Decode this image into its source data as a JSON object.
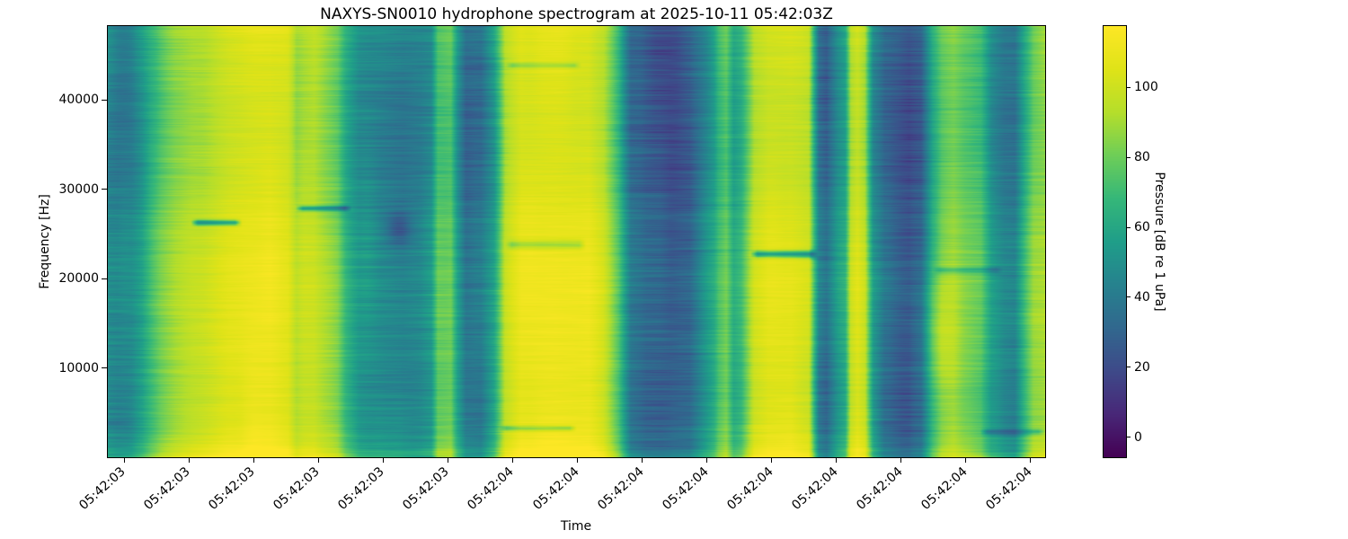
{
  "chart_data": {
    "type": "heatmap",
    "title": "NAXYS-SN0010 hydrophone spectrogram at 2025-10-11 05:42:03Z",
    "xlabel": "Time",
    "ylabel": "Frequency [Hz]",
    "colorbar_label": "Pressure [dB re 1 uPa]",
    "colormap": "viridis",
    "x_tick_labels": [
      "05:42:03",
      "05:42:03",
      "05:42:03",
      "05:42:03",
      "05:42:03",
      "05:42:03",
      "05:42:04",
      "05:42:04",
      "05:42:04",
      "05:42:04",
      "05:42:04",
      "05:42:04",
      "05:42:04",
      "05:42:04",
      "05:42:04"
    ],
    "y_ticks": [
      10000,
      20000,
      30000,
      40000
    ],
    "y_range_hz": [
      0,
      48300
    ],
    "colorbar_ticks": [
      0,
      20,
      40,
      60,
      80,
      100
    ],
    "colorbar_range_db": [
      -5.7,
      117.5
    ],
    "time_profile": [
      [
        0.0,
        46
      ],
      [
        0.01,
        43
      ],
      [
        0.025,
        45
      ],
      [
        0.036,
        54
      ],
      [
        0.046,
        68
      ],
      [
        0.056,
        78
      ],
      [
        0.072,
        86
      ],
      [
        0.092,
        92
      ],
      [
        0.11,
        97
      ],
      [
        0.13,
        103
      ],
      [
        0.15,
        106
      ],
      [
        0.173,
        108
      ],
      [
        0.192,
        103
      ],
      [
        0.201,
        90
      ],
      [
        0.209,
        94
      ],
      [
        0.22,
        96
      ],
      [
        0.233,
        88
      ],
      [
        0.245,
        80
      ],
      [
        0.254,
        64
      ],
      [
        0.268,
        50
      ],
      [
        0.283,
        47
      ],
      [
        0.3,
        44
      ],
      [
        0.315,
        42
      ],
      [
        0.334,
        45
      ],
      [
        0.345,
        50
      ],
      [
        0.352,
        75
      ],
      [
        0.366,
        78
      ],
      [
        0.373,
        55
      ],
      [
        0.382,
        36
      ],
      [
        0.398,
        34
      ],
      [
        0.412,
        55
      ],
      [
        0.424,
        93
      ],
      [
        0.441,
        106
      ],
      [
        0.479,
        108
      ],
      [
        0.513,
        106
      ],
      [
        0.529,
        96
      ],
      [
        0.545,
        70
      ],
      [
        0.558,
        35
      ],
      [
        0.575,
        27
      ],
      [
        0.599,
        24
      ],
      [
        0.621,
        27
      ],
      [
        0.635,
        44
      ],
      [
        0.647,
        58
      ],
      [
        0.652,
        70
      ],
      [
        0.66,
        78
      ],
      [
        0.668,
        60
      ],
      [
        0.676,
        66
      ],
      [
        0.683,
        80
      ],
      [
        0.69,
        95
      ],
      [
        0.705,
        102
      ],
      [
        0.729,
        103
      ],
      [
        0.748,
        98
      ],
      [
        0.759,
        38
      ],
      [
        0.767,
        30
      ],
      [
        0.779,
        50
      ],
      [
        0.787,
        60
      ],
      [
        0.793,
        95
      ],
      [
        0.8,
        102
      ],
      [
        0.808,
        94
      ],
      [
        0.817,
        50
      ],
      [
        0.829,
        30
      ],
      [
        0.844,
        26
      ],
      [
        0.855,
        21
      ],
      [
        0.868,
        26
      ],
      [
        0.88,
        62
      ],
      [
        0.89,
        78
      ],
      [
        0.903,
        84
      ],
      [
        0.92,
        78
      ],
      [
        0.932,
        72
      ],
      [
        0.943,
        52
      ],
      [
        0.957,
        42
      ],
      [
        0.968,
        40
      ],
      [
        0.978,
        62
      ],
      [
        0.988,
        82
      ],
      [
        1.0,
        88
      ]
    ],
    "freq_profile_offsets": [
      [
        0.0,
        18
      ],
      [
        0.01,
        14
      ],
      [
        0.03,
        8
      ],
      [
        0.08,
        3
      ],
      [
        0.15,
        2
      ],
      [
        0.25,
        4
      ],
      [
        0.33,
        5
      ],
      [
        0.4,
        6
      ],
      [
        0.48,
        4
      ],
      [
        0.55,
        2
      ],
      [
        0.62,
        -2
      ],
      [
        0.72,
        -4
      ],
      [
        0.82,
        -4
      ],
      [
        0.92,
        -2
      ],
      [
        0.97,
        -1
      ],
      [
        1.0,
        2
      ]
    ],
    "streaks": [
      {
        "x0": 0.088,
        "x1": 0.143,
        "y": 0.545,
        "amp": -45,
        "h": 2.2
      },
      {
        "x0": 0.2,
        "x1": 0.26,
        "y": 0.578,
        "amp": -38,
        "h": 2.0
      },
      {
        "x0": 0.685,
        "x1": 0.758,
        "y": 0.472,
        "amp": -52,
        "h": 2.5
      },
      {
        "x0": 0.423,
        "x1": 0.51,
        "y": 0.494,
        "amp": -20,
        "h": 3.5
      },
      {
        "x0": 0.424,
        "x1": 0.505,
        "y": 0.91,
        "amp": -18,
        "h": 2.0
      },
      {
        "x0": 0.88,
        "x1": 0.955,
        "y": 0.435,
        "amp": -16,
        "h": 2.5
      },
      {
        "x0": 0.417,
        "x1": 0.5,
        "y": 0.068,
        "amp": -25,
        "h": 2.0
      },
      {
        "x0": 0.93,
        "x1": 1.0,
        "y": 0.06,
        "amp": -20,
        "h": 2.0
      }
    ],
    "blobs": [
      {
        "x": 0.885,
        "y": 0.28,
        "sx": 14,
        "sy": 45,
        "amp": 14
      },
      {
        "x": 0.31,
        "y": 0.53,
        "sx": 10,
        "sy": 12,
        "amp": -18
      }
    ],
    "noise": {
      "seed": 7,
      "octaves": [
        [
          60,
          1.4,
          1.0
        ],
        [
          36,
          1.0,
          0.85
        ],
        [
          150,
          2.6,
          0.5
        ],
        [
          18,
          240,
          0.8
        ]
      ],
      "dark_boost": [
        1.8,
        4.6
      ]
    }
  }
}
